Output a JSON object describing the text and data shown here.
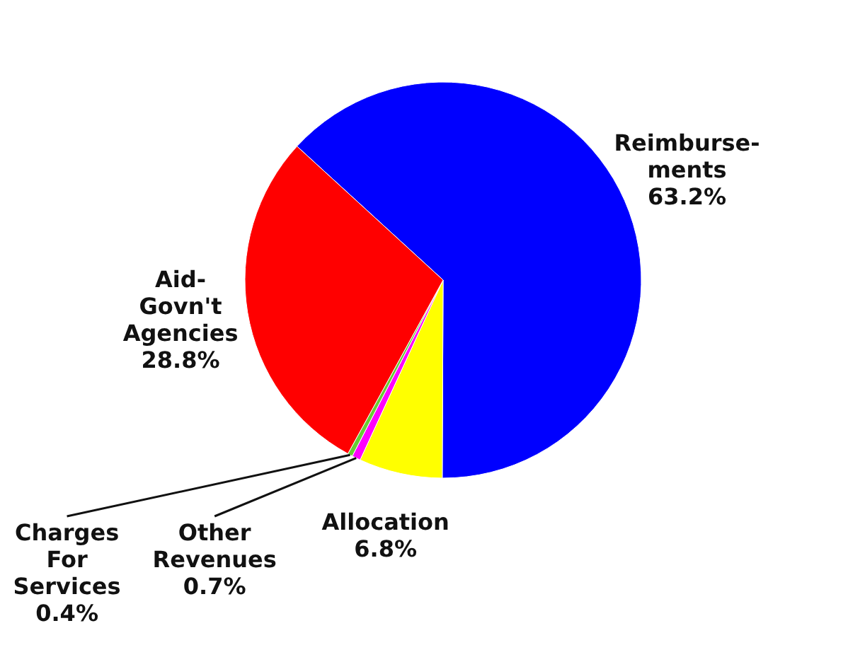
{
  "chart_data": {
    "type": "pie",
    "categories": [
      "Reimburse-ments",
      "Allocation",
      "Other Revenues",
      "Charges For Services",
      "Aid-Govn't Agencies"
    ],
    "values": [
      63.2,
      6.8,
      0.7,
      0.4,
      28.8
    ],
    "value_labels": [
      "63.2%",
      "6.8%",
      "0.7%",
      "0.4%",
      "28.8%"
    ],
    "colors": [
      "#0000ff",
      "#ffff00",
      "#ff00ff",
      "#66cc33",
      "#ff0000"
    ],
    "legend": false
  }
}
